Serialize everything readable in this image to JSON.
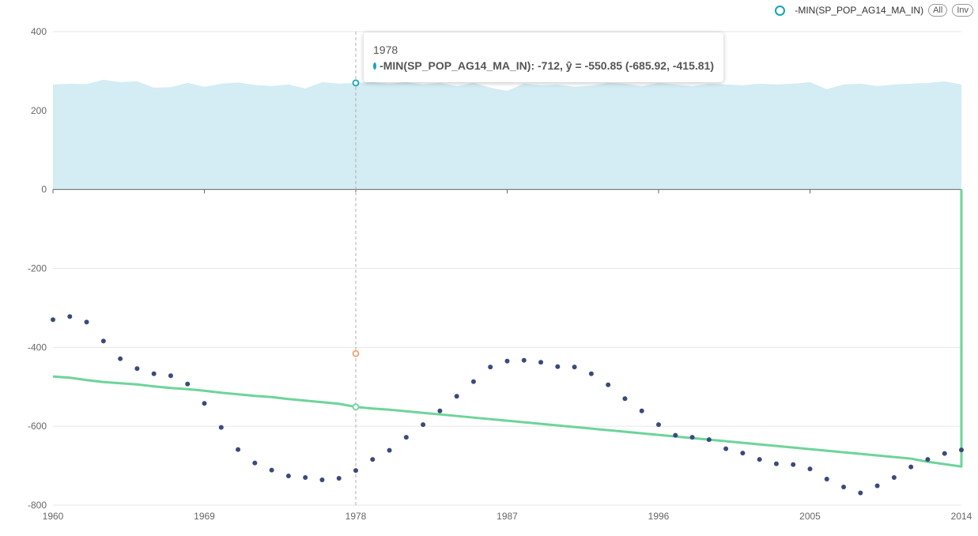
{
  "legend": {
    "series_label": "-MIN(SP_POP_AG14_MA_IN)",
    "all_label": "All",
    "inv_label": "Inv",
    "marker_color": "#17a2b8"
  },
  "tooltip": {
    "year": "1978",
    "text": "-MIN(SP_POP_AG14_MA_IN): -712, ŷ = -550.85 (-685.92, -415.81)",
    "dot_color": "#1ba3c6"
  },
  "chart_data": {
    "type": "scatter",
    "title": "",
    "xlabel": "",
    "ylabel": "",
    "xlim": [
      1960,
      2014
    ],
    "ylim": [
      -800,
      400
    ],
    "x_ticks": [
      1960,
      1969,
      1978,
      1987,
      1996,
      2005,
      2014
    ],
    "y_ticks": [
      -800,
      -600,
      -400,
      -200,
      0,
      200,
      400
    ],
    "grid": "horizontal",
    "legend_position": "top-right",
    "highlight_x": 1978,
    "colors": {
      "points": "#3b4a7a",
      "trend": "#6dd49a",
      "band": "#d4ecf3",
      "highlight_upper": "#17a2b8",
      "highlight_fitted": "#6dd49a",
      "highlight_lower": "#f0a070"
    },
    "series": [
      {
        "name": "-MIN(SP_POP_AG14_MA_IN)",
        "x": [
          1960,
          1961,
          1962,
          1963,
          1964,
          1965,
          1966,
          1967,
          1968,
          1969,
          1970,
          1971,
          1972,
          1973,
          1974,
          1975,
          1976,
          1977,
          1978,
          1979,
          1980,
          1981,
          1982,
          1983,
          1984,
          1985,
          1986,
          1987,
          1988,
          1989,
          1990,
          1991,
          1992,
          1993,
          1994,
          1995,
          1996,
          1997,
          1998,
          1999,
          2000,
          2001,
          2002,
          2003,
          2004,
          2005,
          2006,
          2007,
          2008,
          2009,
          2010,
          2011,
          2012,
          2013,
          2014
        ],
        "values": [
          -330,
          -322,
          -336,
          -384,
          -429,
          -454,
          -467,
          -472,
          -493,
          -542,
          -603,
          -659,
          -693,
          -711,
          -726,
          -730,
          -736,
          -732,
          -712,
          -684,
          -661,
          -628,
          -596,
          -561,
          -524,
          -487,
          -450,
          -435,
          -433,
          -438,
          -449,
          -450,
          -467,
          -495,
          -530,
          -561,
          -596,
          -623,
          -628,
          -634,
          -657,
          -668,
          -684,
          -695,
          -697,
          -708,
          -734,
          -754,
          -769,
          -751,
          -730,
          -703,
          -684,
          -669,
          -660
        ]
      }
    ],
    "trend": {
      "x": [
        1960,
        1961,
        1962,
        1963,
        1964,
        1965,
        1966,
        1967,
        1968,
        1969,
        1970,
        1971,
        1972,
        1973,
        1974,
        1975,
        1976,
        1977,
        1978,
        1979,
        1980,
        1981,
        1982,
        1983,
        1984,
        1985,
        1986,
        1987,
        1988,
        1989,
        1990,
        1991,
        1992,
        1993,
        1994,
        1995,
        1996,
        1997,
        1998,
        1999,
        2000,
        2001,
        2002,
        2003,
        2004,
        2005,
        2006,
        2007,
        2008,
        2009,
        2010,
        2011,
        2012,
        2013,
        2014
      ],
      "values": [
        -474,
        -477,
        -483,
        -488,
        -491,
        -494,
        -499,
        -503,
        -506,
        -510,
        -515,
        -519,
        -523,
        -526,
        -531,
        -535,
        -539,
        -543,
        -551,
        -555,
        -558,
        -562,
        -566,
        -570,
        -574,
        -578,
        -582,
        -586,
        -590,
        -594,
        -598,
        -602,
        -606,
        -610,
        -614,
        -618,
        -622,
        -626,
        -630,
        -634,
        -638,
        -642,
        -646,
        -650,
        -654,
        -658,
        -662,
        -666,
        -670,
        -674,
        -678,
        -682,
        -690,
        -696,
        -702
      ]
    },
    "upper_band": {
      "x": [
        1960,
        1961,
        1962,
        1963,
        1964,
        1965,
        1966,
        1967,
        1968,
        1969,
        1970,
        1971,
        1972,
        1973,
        1974,
        1975,
        1976,
        1977,
        1978,
        1979,
        1980,
        1981,
        1982,
        1983,
        1984,
        1985,
        1986,
        1987,
        1988,
        1989,
        1990,
        1991,
        1992,
        1993,
        1994,
        1995,
        1996,
        1997,
        1998,
        1999,
        2000,
        2001,
        2002,
        2003,
        2004,
        2005,
        2006,
        2007,
        2008,
        2009,
        2010,
        2011,
        2012,
        2013,
        2014
      ],
      "values": [
        266,
        268,
        267,
        278,
        272,
        274,
        258,
        259,
        270,
        260,
        268,
        271,
        265,
        262,
        266,
        256,
        272,
        268,
        270,
        272,
        268,
        272,
        266,
        270,
        262,
        270,
        258,
        250,
        268,
        264,
        266,
        260,
        263,
        270,
        268,
        262,
        270,
        266,
        262,
        268,
        266,
        264,
        268,
        266,
        268,
        272,
        254,
        266,
        268,
        262,
        266,
        268,
        270,
        274,
        266
      ]
    },
    "highlight_points": {
      "upper": 270,
      "fitted": -550.85,
      "lower": -415.81
    }
  }
}
